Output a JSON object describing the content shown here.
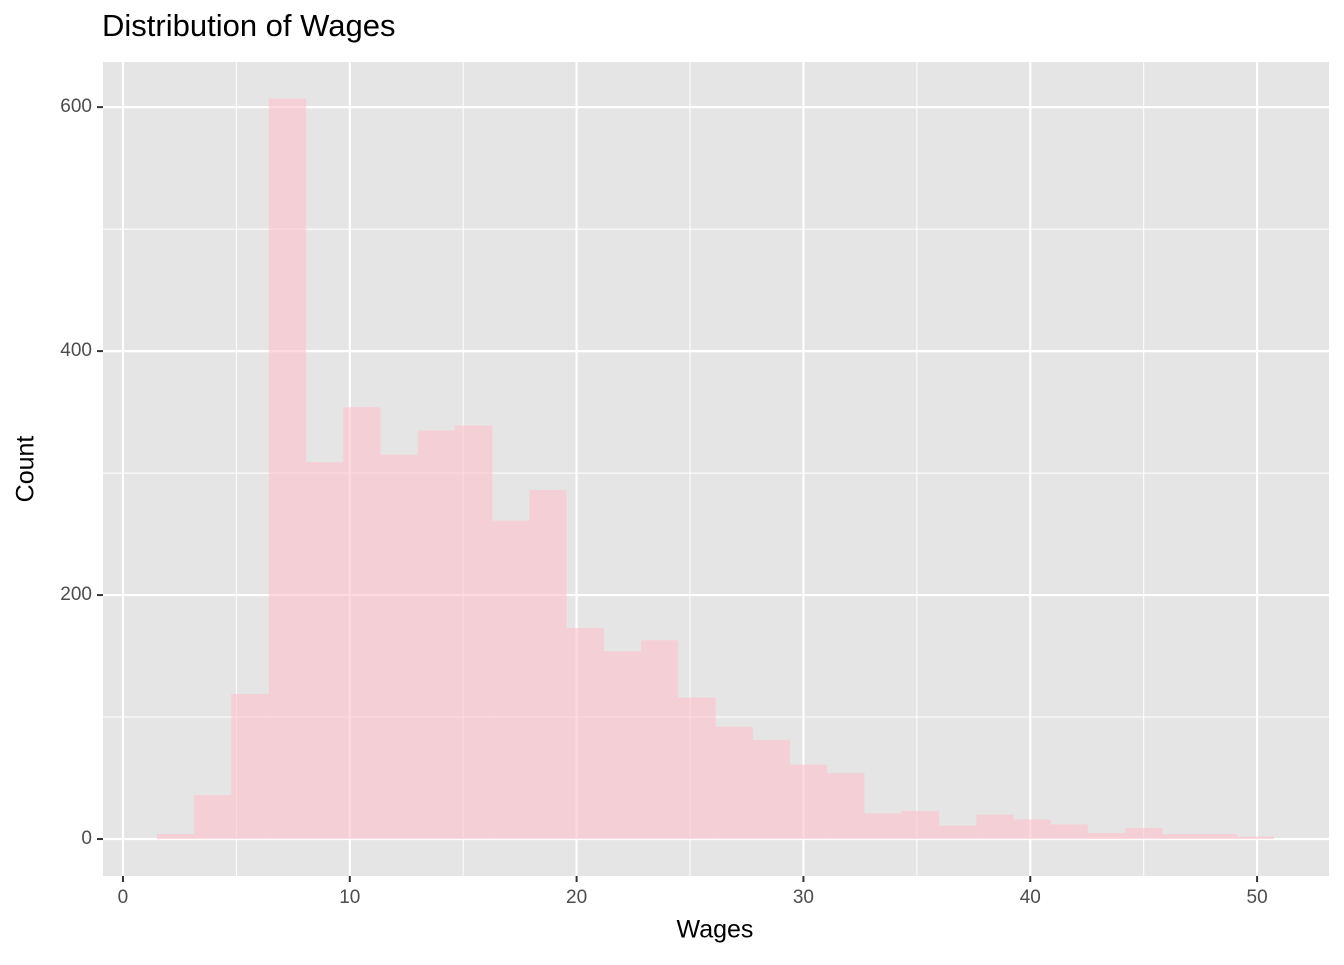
{
  "chart_data": {
    "type": "histogram",
    "title": "Distribution of Wages",
    "x_label": "Wages",
    "y_label": "Count",
    "bins": [
      1.5,
      3.14,
      4.78,
      6.43,
      8.07,
      9.71,
      11.35,
      12.99,
      14.63,
      16.28,
      17.92,
      19.56,
      21.2,
      22.84,
      24.48,
      26.13,
      27.77,
      29.41,
      31.05,
      32.69,
      34.33,
      35.98,
      37.62,
      39.26,
      40.9,
      42.54,
      44.18,
      45.83,
      47.47,
      49.11,
      50.75
    ],
    "values": [
      4,
      36,
      119,
      607,
      309,
      354,
      315,
      335,
      339,
      261,
      286,
      173,
      154,
      163,
      116,
      92,
      81,
      61,
      54,
      21,
      23,
      11,
      20,
      16,
      12,
      5,
      9,
      4,
      4,
      2
    ],
    "color": "#ffc0cb",
    "xlim": [
      -0.88,
      53.17
    ],
    "xticks": [
      0,
      10,
      20,
      30,
      40,
      50
    ],
    "ylim": [
      -30.3,
      637
    ],
    "yticks": [
      0,
      200,
      400,
      600
    ],
    "grid": true
  }
}
